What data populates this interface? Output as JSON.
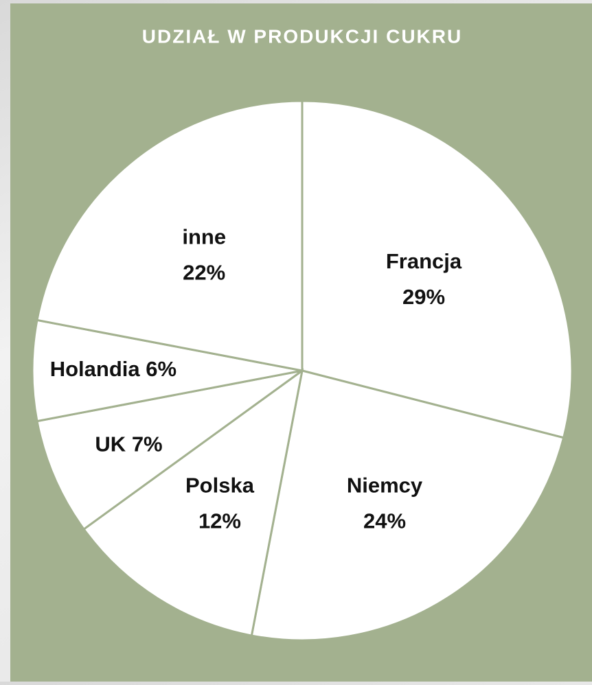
{
  "chart_data": {
    "type": "pie",
    "title": "UDZIAŁ W PRODUKCJI CUKRU",
    "categories": [
      "Francja",
      "Niemcy",
      "Polska",
      "UK",
      "Holandia",
      "inne"
    ],
    "values": [
      29,
      24,
      12,
      7,
      6,
      22
    ],
    "value_labels": [
      "29%",
      "24%",
      "12%",
      "7%",
      "6%",
      "22%"
    ],
    "color": "#ffffff",
    "edge_color": "#a3b18f",
    "background": "#a3b18f"
  }
}
